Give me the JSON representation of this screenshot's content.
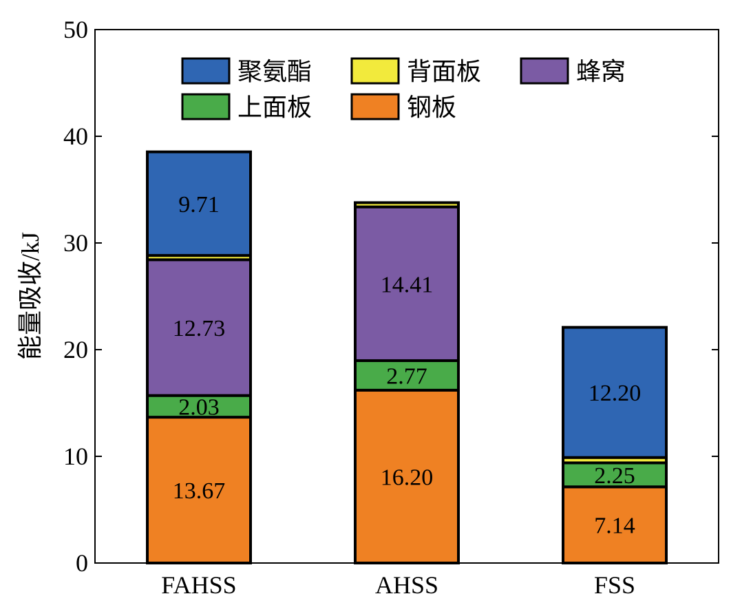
{
  "chart_data": {
    "type": "bar",
    "stacked": true,
    "ylabel": "能量吸收/kJ",
    "xlabel": "",
    "ylim": [
      0,
      50
    ],
    "yticks": [
      0,
      10,
      20,
      30,
      40,
      50
    ],
    "grid": false,
    "categories": [
      "FAHSS",
      "AHSS",
      "FSS"
    ],
    "legend": {
      "placement": "top",
      "order": [
        "聚氨酯",
        "背面板",
        "蜂窝",
        "上面板",
        "钢板"
      ]
    },
    "series": [
      {
        "name": "钢板",
        "color": "#ef8123",
        "values": [
          13.67,
          16.2,
          7.14
        ],
        "labels": [
          "13.67",
          "16.20",
          "7.14"
        ]
      },
      {
        "name": "上面板",
        "color": "#49ab49",
        "values": [
          2.03,
          2.77,
          2.25
        ],
        "labels": [
          "2.03",
          "2.77",
          "2.25"
        ]
      },
      {
        "name": "蜂窝",
        "color": "#7b5ba4",
        "values": [
          12.73,
          14.41,
          0
        ],
        "labels": [
          "12.73",
          "14.41",
          ""
        ]
      },
      {
        "name": "背面板",
        "color": "#f2ea3c",
        "values": [
          0.4,
          0.4,
          0.5
        ],
        "labels": [
          "",
          "",
          ""
        ]
      },
      {
        "name": "聚氨酯",
        "color": "#2f66b3",
        "values": [
          9.71,
          0,
          12.2
        ],
        "labels": [
          "9.71",
          "",
          "12.20"
        ]
      }
    ]
  }
}
